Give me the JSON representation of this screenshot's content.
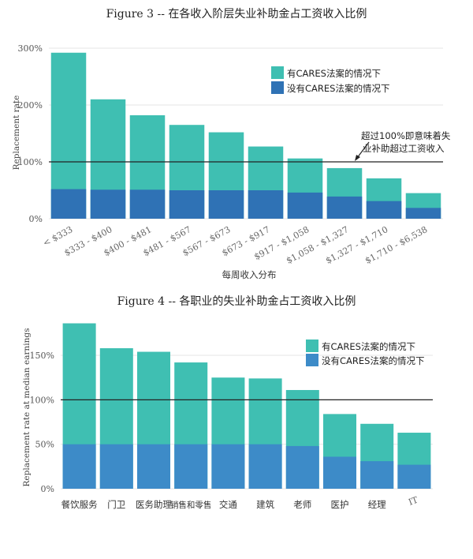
{
  "colors": {
    "with_cares": "#3fbfb2",
    "without_cares": "#2f72b5",
    "without_cares_2": "#3d8bc8",
    "grid": "#e6e6e6",
    "ref_line": "#222222"
  },
  "chart_data": [
    {
      "type": "bar",
      "title": "Figure 3 -- 在各收入阶层失业补助金占工资收入比例",
      "xlabel": "每周收入分布",
      "ylabel": "Replacement rate",
      "ylim": [
        0,
        300
      ],
      "yticks": [
        "0%",
        "100%",
        "200%",
        "300%"
      ],
      "reference_line": 100,
      "annotation": [
        "超过100%即意味着失",
        "业补助超过工资收入"
      ],
      "legend_position": "top-right",
      "grid": true,
      "categories": [
        "< $333",
        "$333 - $400",
        "$400 - $481",
        "$481 - $567",
        "$567 - $673",
        "$673 - $917",
        "$917 - $1,058",
        "$1,058 - $1,327",
        "$1,327 - $1,710",
        "$1,710 - $6,538"
      ],
      "series": [
        {
          "name": "有CARES法案的情况下",
          "values": [
            292,
            210,
            182,
            165,
            152,
            127,
            106,
            89,
            71,
            45
          ]
        },
        {
          "name": "没有CARES法案的情况下",
          "values": [
            52,
            51,
            51,
            50,
            50,
            50,
            46,
            39,
            31,
            19
          ]
        }
      ]
    },
    {
      "type": "bar",
      "title": "Figure 4 -- 各职业的失业补助金占工资收入比例",
      "xlabel": "",
      "ylabel": "Replacement rate at median earnings",
      "ylim": [
        0,
        190
      ],
      "yticks": [
        "0%",
        "50%",
        "100%",
        "150%"
      ],
      "reference_line": 100,
      "legend_position": "top-right",
      "grid": true,
      "categories": [
        "餐饮服务",
        "门卫",
        "医务助理",
        "销售和零售",
        "交通",
        "建筑",
        "老师",
        "医护",
        "经理",
        "IT"
      ],
      "series": [
        {
          "name": "有CARES法案的情况下",
          "values": [
            186,
            158,
            154,
            142,
            125,
            124,
            111,
            84,
            73,
            63
          ]
        },
        {
          "name": "没有CARES法案的情况下",
          "values": [
            50,
            50,
            50,
            50,
            50,
            50,
            48,
            36,
            31,
            27
          ]
        }
      ]
    }
  ]
}
